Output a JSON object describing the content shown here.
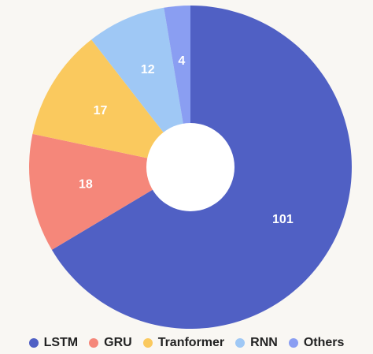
{
  "chart_data": {
    "type": "pie",
    "donut": true,
    "categories": [
      "LSTM",
      "GRU",
      "Tranformer",
      "RNN",
      "Others"
    ],
    "values": [
      101,
      18,
      17,
      12,
      4
    ],
    "colors": [
      "#5060c4",
      "#f5877a",
      "#fac95e",
      "#9fc8f5",
      "#8a9ef2"
    ],
    "data_labels": [
      "101",
      "18",
      "17",
      "12",
      "4"
    ],
    "legend_position": "bottom",
    "start": "top, clockwise"
  }
}
